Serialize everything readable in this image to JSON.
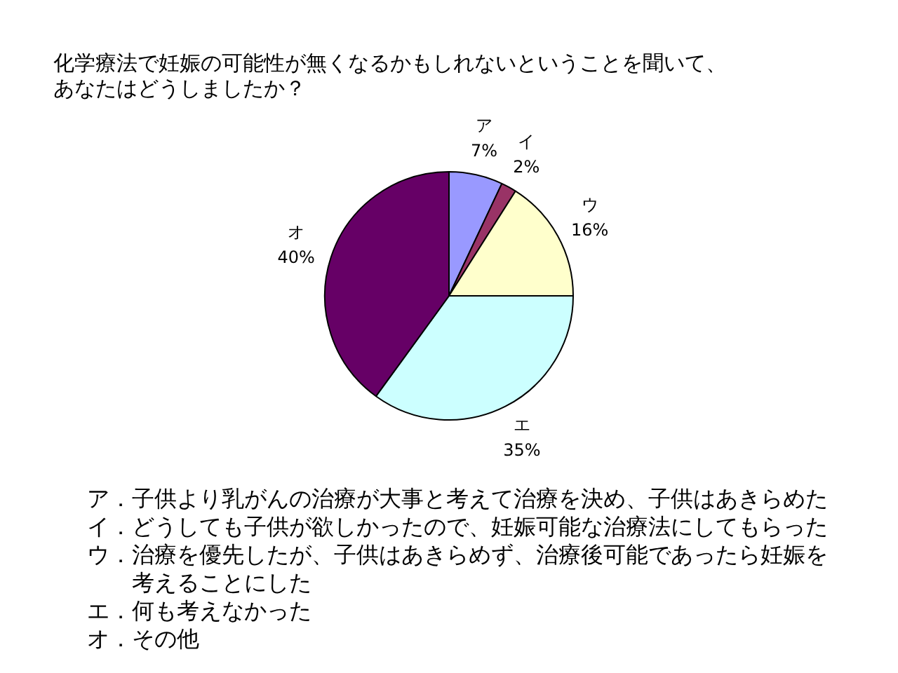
{
  "chart_data": {
    "type": "pie",
    "title": "化学療法で妊娠の可能性が無くなるかもしれないということを聞いて、あなたはどうしましたか？",
    "categories": [
      "ア",
      "イ",
      "ウ",
      "エ",
      "オ"
    ],
    "values": [
      7,
      2,
      16,
      35,
      40
    ],
    "value_labels": [
      "7%",
      "2%",
      "16%",
      "35%",
      "40%"
    ],
    "colors": [
      "#9999ff",
      "#993366",
      "#ffffcc",
      "#ccffff",
      "#660066"
    ],
    "annotations": [
      "ア．子供より乳がんの治療が大事と考えて治療を決め、子供はあきらめた",
      "イ．どうしても子供が欲しかったので、妊娠可能な治療法にしてもらった",
      "ウ．治療を優先したが、子供はあきらめず、治療後可能であったら妊娠を考えることにした",
      "エ．何も考えなかった",
      "オ．その他"
    ]
  }
}
